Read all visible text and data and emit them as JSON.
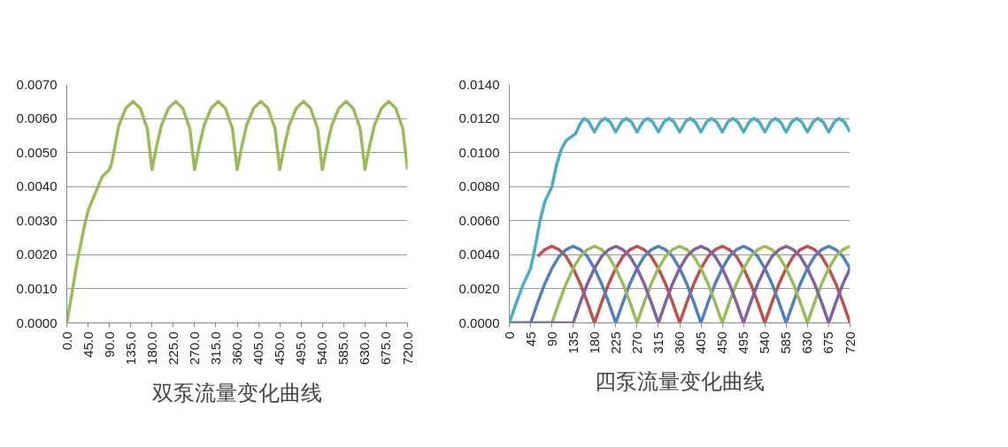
{
  "chart_data": [
    {
      "type": "line",
      "title": "双泵流量变化曲线",
      "grid": "y",
      "line_style": "solid",
      "marker": "none",
      "xlim": [
        0,
        720
      ],
      "xticks": [
        {
          "value": 0,
          "label": "0.0"
        },
        {
          "value": 45,
          "label": "45.0"
        },
        {
          "value": 90,
          "label": "90.0"
        },
        {
          "value": 135,
          "label": "135.0"
        },
        {
          "value": 180,
          "label": "180.0"
        },
        {
          "value": 225,
          "label": "225.0"
        },
        {
          "value": 270,
          "label": "270.0"
        },
        {
          "value": 315,
          "label": "315.0"
        },
        {
          "value": 360,
          "label": "360.0"
        },
        {
          "value": 405,
          "label": "405.0"
        },
        {
          "value": 450,
          "label": "450.0"
        },
        {
          "value": 495,
          "label": "495.0"
        },
        {
          "value": 540,
          "label": "540.0"
        },
        {
          "value": 585,
          "label": "585.0"
        },
        {
          "value": 630,
          "label": "630.0"
        },
        {
          "value": 675,
          "label": "675.0"
        },
        {
          "value": 720,
          "label": "720.0"
        }
      ],
      "ylim": [
        0,
        0.007
      ],
      "yticks": [
        {
          "value": 0,
          "label": "0.0000"
        },
        {
          "value": 0.001,
          "label": "0.0010"
        },
        {
          "value": 0.002,
          "label": "0.0020"
        },
        {
          "value": 0.003,
          "label": "0.0030"
        },
        {
          "value": 0.004,
          "label": "0.0040"
        },
        {
          "value": 0.005,
          "label": "0.0050"
        },
        {
          "value": 0.006,
          "label": "0.0060"
        },
        {
          "value": 0.007,
          "label": "0.0070"
        }
      ],
      "series": [
        {
          "color": "#9bbb59",
          "x": [
            0,
            10,
            22,
            35,
            45,
            60,
            75,
            90,
            95,
            110,
            125,
            140,
            155,
            170,
            180,
            190,
            200,
            215,
            230,
            245,
            260,
            270,
            280,
            290,
            305,
            320,
            335,
            350,
            360,
            370,
            380,
            395,
            410,
            425,
            440,
            450,
            460,
            470,
            485,
            500,
            515,
            530,
            540,
            550,
            560,
            575,
            590,
            605,
            620,
            630,
            640,
            650,
            665,
            680,
            695,
            710,
            720
          ],
          "values": [
            0,
            0.0008,
            0.0018,
            0.0027,
            0.0033,
            0.0038,
            0.0043,
            0.0045,
            0.0047,
            0.0058,
            0.0063,
            0.0065,
            0.0063,
            0.0057,
            0.0045,
            0.0052,
            0.0058,
            0.0063,
            0.0065,
            0.0063,
            0.0057,
            0.0045,
            0.0052,
            0.0058,
            0.0063,
            0.0065,
            0.0063,
            0.0057,
            0.0045,
            0.0052,
            0.0058,
            0.0063,
            0.0065,
            0.0063,
            0.0057,
            0.0045,
            0.0052,
            0.0058,
            0.0063,
            0.0065,
            0.0063,
            0.0057,
            0.0045,
            0.0052,
            0.0058,
            0.0063,
            0.0065,
            0.0063,
            0.0057,
            0.0045,
            0.0052,
            0.0058,
            0.0063,
            0.0065,
            0.0063,
            0.0057,
            0.0045
          ]
        }
      ]
    },
    {
      "type": "line",
      "title": "四泵流量变化曲线",
      "grid": "y",
      "line_style": "solid",
      "marker": "none",
      "xlim": [
        0,
        720
      ],
      "xticks": [
        0,
        45,
        90,
        135,
        180,
        225,
        270,
        315,
        360,
        405,
        450,
        495,
        540,
        585,
        630,
        675,
        720
      ],
      "ylim": [
        0,
        0.014
      ],
      "yticks": [
        {
          "value": 0,
          "label": "0.0000"
        },
        {
          "value": 0.002,
          "label": "0.0020"
        },
        {
          "value": 0.004,
          "label": "0.0040"
        },
        {
          "value": 0.006,
          "label": "0.0060"
        },
        {
          "value": 0.008,
          "label": "0.0080"
        },
        {
          "value": 0.01,
          "label": "0.0100"
        },
        {
          "value": 0.012,
          "label": "0.0120"
        },
        {
          "value": 0.014,
          "label": "0.0140"
        }
      ],
      "x": [
        0,
        15,
        30,
        45,
        60,
        75,
        90,
        105,
        120,
        135,
        150,
        165,
        180,
        195,
        210,
        225,
        240,
        255,
        270,
        285,
        300,
        315,
        330,
        345,
        360,
        375,
        390,
        405,
        420,
        435,
        450,
        465,
        480,
        495,
        510,
        525,
        540,
        555,
        570,
        585,
        600,
        615,
        630,
        645,
        660,
        675,
        690,
        705,
        720
      ],
      "series": [
        {
          "color": "#c0504d",
          "values": [
            null,
            null,
            null,
            null,
            0.0039,
            0.0043,
            0.0045,
            0.0043,
            0.0039,
            0.0032,
            0.0023,
            0.0012,
            0,
            0.0012,
            0.0023,
            0.0032,
            0.0039,
            0.0043,
            0.0045,
            0.0043,
            0.0039,
            0.0032,
            0.0023,
            0.0012,
            0,
            0.0012,
            0.0023,
            0.0032,
            0.0039,
            0.0043,
            0.0045,
            0.0043,
            0.0039,
            0.0032,
            0.0023,
            0.0012,
            0,
            0.0012,
            0.0023,
            0.0032,
            0.0039,
            0.0043,
            0.0045,
            0.0043,
            0.0039,
            0.0032,
            0.0023,
            0.0012,
            0
          ]
        },
        {
          "color": "#4f81bd",
          "values": [
            0,
            0,
            0,
            0,
            0.0012,
            0.0023,
            0.0032,
            0.0039,
            0.0043,
            0.0045,
            0.0043,
            0.0039,
            0.0032,
            0.0023,
            0.0012,
            0,
            0.0012,
            0.0023,
            0.0032,
            0.0039,
            0.0043,
            0.0045,
            0.0043,
            0.0039,
            0.0032,
            0.0023,
            0.0012,
            0,
            0.0012,
            0.0023,
            0.0032,
            0.0039,
            0.0043,
            0.0045,
            0.0043,
            0.0039,
            0.0032,
            0.0023,
            0.0012,
            0,
            0.0012,
            0.0023,
            0.0032,
            0.0039,
            0.0043,
            0.0045,
            0.0043,
            0.0039,
            0.0032
          ]
        },
        {
          "color": "#9bbb59",
          "values": [
            null,
            null,
            0,
            0,
            0,
            0,
            0,
            0.0012,
            0.0023,
            0.0032,
            0.0039,
            0.0043,
            0.0045,
            0.0043,
            0.0039,
            0.0032,
            0.0023,
            0.0012,
            0,
            0.0012,
            0.0023,
            0.0032,
            0.0039,
            0.0043,
            0.0045,
            0.0043,
            0.0039,
            0.0032,
            0.0023,
            0.0012,
            0,
            0.0012,
            0.0023,
            0.0032,
            0.0039,
            0.0043,
            0.0045,
            0.0043,
            0.0039,
            0.0032,
            0.0023,
            0.0012,
            0,
            0.0012,
            0.0023,
            0.0032,
            0.0039,
            0.0043,
            0.0045
          ]
        },
        {
          "color": "#8064a2",
          "values": [
            0,
            0,
            0,
            0,
            0,
            0,
            0,
            0,
            0,
            0,
            0.0012,
            0.0023,
            0.0032,
            0.0039,
            0.0043,
            0.0045,
            0.0043,
            0.0039,
            0.0032,
            0.0023,
            0.0012,
            0,
            0.0012,
            0.0023,
            0.0032,
            0.0039,
            0.0043,
            0.0045,
            0.0043,
            0.0039,
            0.0032,
            0.0023,
            0.0012,
            0,
            0.0012,
            0.0023,
            0.0032,
            0.0039,
            0.0043,
            0.0045,
            0.0043,
            0.0039,
            0.0032,
            0.0023,
            0.0012,
            0,
            0.0012,
            0.0023,
            0.0032
          ]
        },
        {
          "color": "#4bacc6",
          "x": [
            0,
            15,
            30,
            45,
            55,
            65,
            75,
            90,
            100,
            110,
            120,
            130,
            140,
            150,
            158,
            168,
            180,
            192,
            202,
            213,
            225,
            237,
            247,
            258,
            270,
            282,
            292,
            303,
            315,
            327,
            337,
            348,
            360,
            372,
            382,
            393,
            405,
            417,
            427,
            438,
            450,
            462,
            472,
            483,
            495,
            507,
            517,
            528,
            540,
            552,
            562,
            573,
            585,
            597,
            607,
            618,
            630,
            642,
            652,
            663,
            675,
            687,
            697,
            708,
            720
          ],
          "values": [
            0,
            0.0012,
            0.0023,
            0.0032,
            0.0045,
            0.006,
            0.0071,
            0.008,
            0.0093,
            0.0102,
            0.0107,
            0.0109,
            0.0111,
            0.0117,
            0.012,
            0.0118,
            0.0112,
            0.0118,
            0.012,
            0.0118,
            0.0112,
            0.0118,
            0.012,
            0.0118,
            0.0112,
            0.0118,
            0.012,
            0.0118,
            0.0112,
            0.0118,
            0.012,
            0.0118,
            0.0112,
            0.0118,
            0.012,
            0.0118,
            0.0112,
            0.0118,
            0.012,
            0.0118,
            0.0112,
            0.0118,
            0.012,
            0.0118,
            0.0112,
            0.0118,
            0.012,
            0.0118,
            0.0112,
            0.0118,
            0.012,
            0.0118,
            0.0112,
            0.0118,
            0.012,
            0.0118,
            0.0112,
            0.0118,
            0.012,
            0.0118,
            0.0112,
            0.0118,
            0.012,
            0.0118,
            0.0112
          ]
        }
      ]
    }
  ]
}
